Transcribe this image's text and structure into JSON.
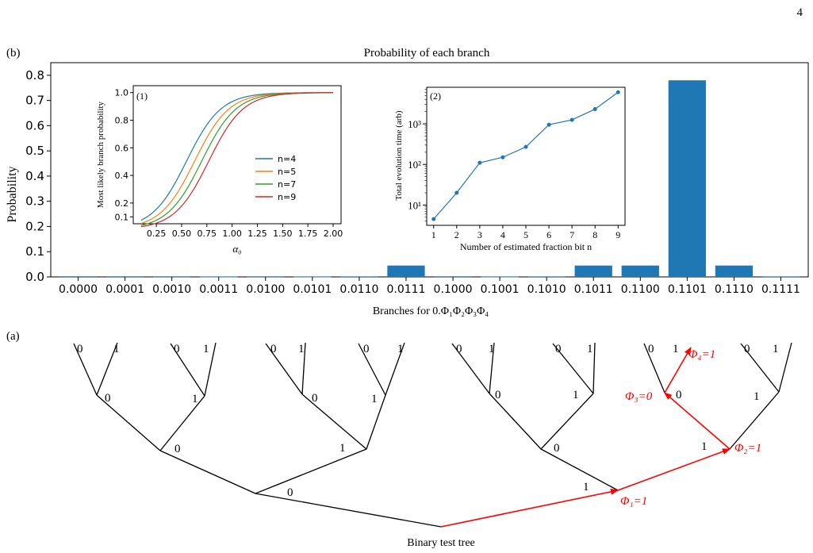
{
  "page_number": "4",
  "panel_b_label": "(b)",
  "panel_a_label": "(a)",
  "chart_data": [
    {
      "type": "bar",
      "title": "Probability of each branch",
      "ylabel": "Probability",
      "xlabel": "Branches for 0.Φ₁Φ₂Φ₃Φ₄",
      "categories": [
        "0.0000",
        "0.0001",
        "0.0010",
        "0.0011",
        "0.0100",
        "0.0101",
        "0.0110",
        "0.0111",
        "0.1000",
        "0.1001",
        "0.1010",
        "0.1011",
        "0.1100",
        "0.1101",
        "0.1110",
        "0.1111"
      ],
      "values": [
        0.0002,
        0.0003,
        0.0005,
        0.001,
        0.0005,
        0.001,
        0.002,
        0.045,
        0.0003,
        0.001,
        0.002,
        0.045,
        0.045,
        0.78,
        0.045,
        0.002
      ],
      "ylim": [
        0,
        0.85
      ],
      "yticks": [
        "0.0",
        "0.1",
        "0.2",
        "0.3",
        "0.4",
        "0.5",
        "0.6",
        "0.7",
        "0.8"
      ],
      "color": "#1f77b4"
    },
    {
      "type": "line",
      "panel_label": "(1)",
      "xlabel": "α₀",
      "ylabel": "Most likely branch probability",
      "xlim": [
        0.1,
        2.0
      ],
      "ylim": [
        0.05,
        1.05
      ],
      "xticks": [
        "0.25",
        "0.50",
        "0.75",
        "1.00",
        "1.25",
        "1.50",
        "1.75",
        "2.00"
      ],
      "yticks": [
        "0.1",
        "0.2",
        "0.4",
        "0.6",
        "0.8",
        "1.0"
      ],
      "legend_position": "center-right",
      "series": [
        {
          "name": "n=4",
          "color": "#1f77b4",
          "midpoint": 0.55,
          "width": 0.17
        },
        {
          "name": "n=5",
          "color": "#ff7f0e",
          "midpoint": 0.63,
          "width": 0.17
        },
        {
          "name": "n=7",
          "color": "#2ca02c",
          "midpoint": 0.7,
          "width": 0.17
        },
        {
          "name": "n=9",
          "color": "#d62728",
          "midpoint": 0.77,
          "width": 0.17
        }
      ]
    },
    {
      "type": "line",
      "panel_label": "(2)",
      "xlabel": "Number of estimated fraction bit n",
      "ylabel": "Total evolution time (arb)",
      "yscale": "log",
      "xlim": [
        0.7,
        9.3
      ],
      "ylim_log10": [
        0.5,
        3.9
      ],
      "xticks": [
        "1",
        "2",
        "3",
        "4",
        "5",
        "6",
        "7",
        "8",
        "9"
      ],
      "yticks": [
        "10¹",
        "10²",
        "10³"
      ],
      "x": [
        1,
        2,
        3,
        4,
        5,
        6,
        7,
        8,
        9
      ],
      "y": [
        4.5,
        20,
        110,
        150,
        270,
        950,
        1250,
        2300,
        6000
      ],
      "color": "#1f77b4"
    }
  ],
  "tree": {
    "caption": "Binary test tree",
    "phi1": "Φ₁=1",
    "phi2": "Φ₂=1",
    "phi3": "Φ₃=0",
    "phi4": "Φ₄=1",
    "zero": "0",
    "one": "1",
    "path_color": "#ff0000"
  }
}
